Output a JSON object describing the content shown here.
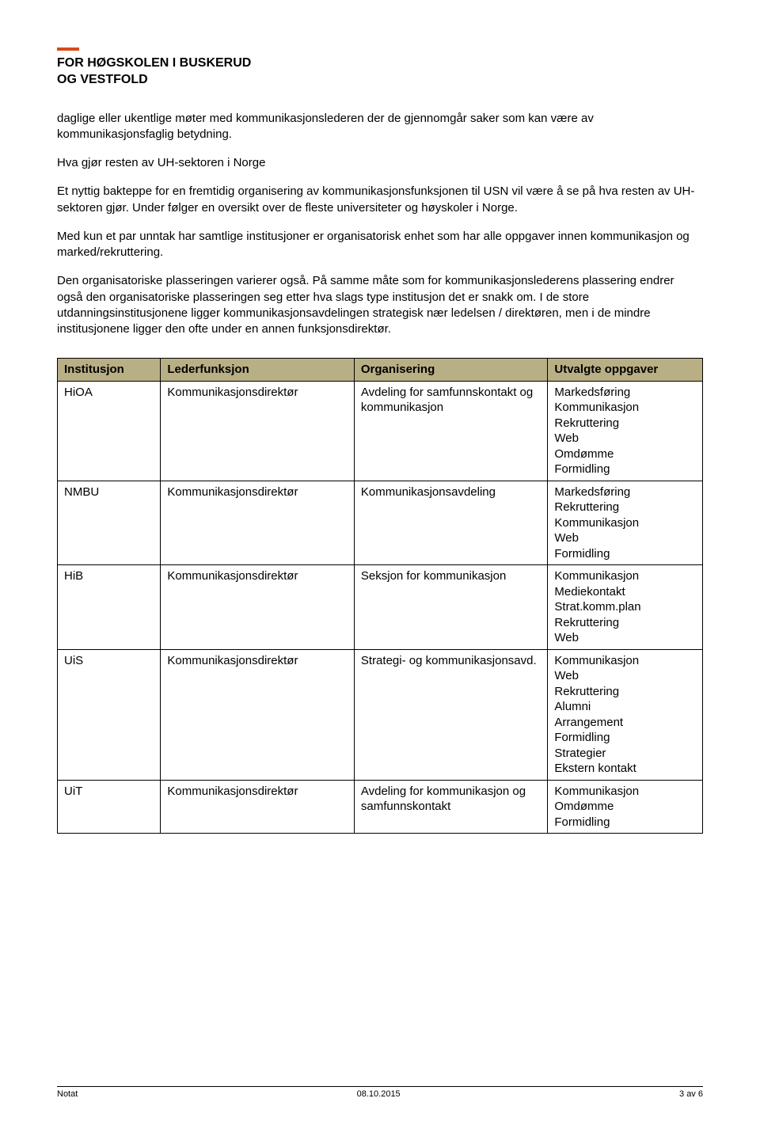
{
  "header": {
    "accent_color": "#d84a1b",
    "line1": "FOR HØGSKOLEN I BUSKERUD",
    "line2": "OG VESTFOLD"
  },
  "body": {
    "intro": "daglige eller ukentlige møter med kommunikasjonslederen der de gjennomgår saker som kan være av kommunikasjonsfaglig betydning.",
    "subheading": "Hva gjør resten av UH-sektoren i Norge",
    "p2": "Et nyttig bakteppe for en fremtidig organisering av kommunikasjonsfunksjonen til USN vil være å se på hva resten av UH-sektoren gjør. Under følger en oversikt over de fleste universiteter og høyskoler i Norge.",
    "p3": "Med kun et par unntak har samtlige institusjoner er organisatorisk enhet som har alle oppgaver innen kommunikasjon og marked/rekruttering.",
    "p4": "Den organisatoriske plasseringen varierer også. På samme måte som for kommunikasjonslederens plassering endrer også den organisatoriske plasseringen seg etter hva slags type institusjon det er snakk om. I de store utdanningsinstitusjonene ligger kommunikasjonsavdelingen strategisk nær ledelsen / direktøren, men i de mindre institusjonene ligger den ofte under en annen funksjonsdirektør."
  },
  "table": {
    "header_bg": "#b9af85",
    "border_color": "#000000",
    "columns": [
      "Institusjon",
      "Lederfunksjon",
      "Organisering",
      "Utvalgte oppgaver"
    ],
    "rows": [
      {
        "inst": "HiOA",
        "leder": "Kommunikasjonsdirektør",
        "org": "Avdeling for samfunnskontakt og kommunikasjon",
        "oppg": "Markedsføring\nKommunikasjon\nRekruttering\nWeb\nOmdømme\nFormidling"
      },
      {
        "inst": "NMBU",
        "leder": "Kommunikasjonsdirektør",
        "org": "Kommunikasjonsavdeling",
        "oppg": "Markedsføring\nRekruttering\nKommunikasjon\nWeb\nFormidling"
      },
      {
        "inst": "HiB",
        "leder": "Kommunikasjonsdirektør",
        "org": "Seksjon for kommunikasjon",
        "oppg": "Kommunikasjon\nMediekontakt\nStrat.komm.plan\nRekruttering\nWeb"
      },
      {
        "inst": "UiS",
        "leder": "Kommunikasjonsdirektør",
        "org": "Strategi- og kommunikasjonsavd.",
        "oppg": "Kommunikasjon\nWeb\nRekruttering\nAlumni\nArrangement\nFormidling\nStrategier\nEkstern kontakt"
      },
      {
        "inst": "UiT",
        "leder": "Kommunikasjonsdirektør",
        "org": "Avdeling for kommunikasjon og samfunnskontakt",
        "oppg": "Kommunikasjon\nOmdømme\nFormidling"
      }
    ]
  },
  "footer": {
    "left": "Notat",
    "center": "08.10.2015",
    "right": "3 av 6"
  }
}
